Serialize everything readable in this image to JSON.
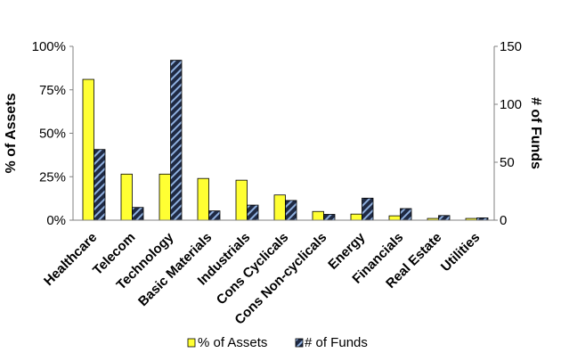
{
  "chart_data": {
    "type": "bar",
    "categories": [
      "Healthcare",
      "Telecom",
      "Technology",
      "Basic Materials",
      "Industrials",
      "Cons Cyclicals",
      "Cons Non-cyclicals",
      "Energy",
      "Financials",
      "Real Estate",
      "Utilities"
    ],
    "series": [
      {
        "name": "% of Assets",
        "axis": "left",
        "values": [
          81,
          26.5,
          26.5,
          24,
          23,
          14.5,
          5,
          3.5,
          2.5,
          1,
          1
        ],
        "color": "#ffff33",
        "pattern": "solid"
      },
      {
        "name": "# of Funds",
        "axis": "right",
        "values": [
          61,
          11,
          138,
          8,
          13,
          17,
          5,
          19,
          10,
          4,
          2
        ],
        "color": "#1f3864",
        "pattern": "diagonal-stripes"
      }
    ],
    "ylabel": "% of Assets",
    "y2label": "# of Funds",
    "ylim": [
      0,
      100
    ],
    "y2lim": [
      0,
      150
    ],
    "yticks": [
      "0%",
      "25%",
      "50%",
      "75%",
      "100%"
    ],
    "y2ticks": [
      "0",
      "50",
      "100",
      "150"
    ],
    "legend_position": "bottom",
    "grid": false
  }
}
